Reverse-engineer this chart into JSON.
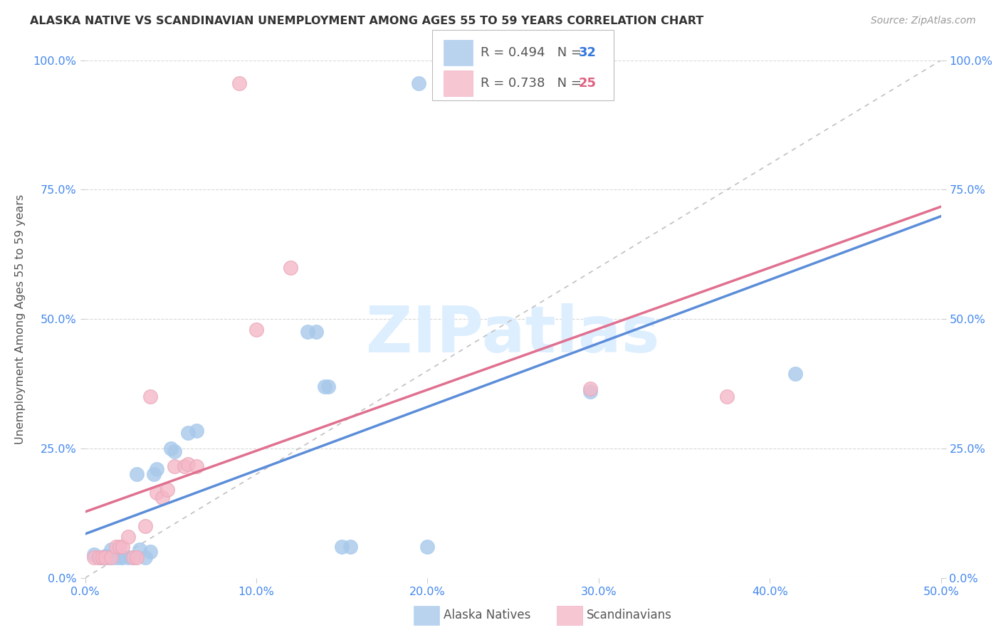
{
  "title": "ALASKA NATIVE VS SCANDINAVIAN UNEMPLOYMENT AMONG AGES 55 TO 59 YEARS CORRELATION CHART",
  "source": "Source: ZipAtlas.com",
  "ylabel": "Unemployment Among Ages 55 to 59 years",
  "xlim": [
    0.0,
    0.5
  ],
  "ylim": [
    0.0,
    1.0
  ],
  "xticks": [
    0.0,
    0.1,
    0.2,
    0.3,
    0.4,
    0.5
  ],
  "yticks": [
    0.0,
    0.25,
    0.5,
    0.75,
    1.0
  ],
  "xticklabels": [
    "0.0%",
    "10.0%",
    "20.0%",
    "30.0%",
    "40.0%",
    "50.0%"
  ],
  "yticklabels": [
    "0.0%",
    "25.0%",
    "50.0%",
    "75.0%",
    "100.0%"
  ],
  "alaska_color": "#a8c8ea",
  "scandinavian_color": "#f5b8c8",
  "alaska_line_color": "#5b8dd9",
  "scandinavian_line_color": "#e07090",
  "R_alaska": 0.494,
  "N_alaska": 32,
  "N_alaska_color": "#3377dd",
  "R_scandinavian": 0.738,
  "N_scandinavian": 25,
  "N_scandinavian_color": "#e06080",
  "alaska_x": [
    0.005,
    0.008,
    0.01,
    0.012,
    0.013,
    0.015,
    0.015,
    0.018,
    0.02,
    0.022,
    0.025,
    0.028,
    0.03,
    0.032,
    0.035,
    0.038,
    0.04,
    0.042,
    0.05,
    0.052,
    0.06,
    0.065,
    0.13,
    0.135,
    0.14,
    0.142,
    0.15,
    0.155,
    0.195,
    0.2,
    0.295,
    0.415
  ],
  "alaska_y": [
    0.045,
    0.04,
    0.04,
    0.042,
    0.04,
    0.04,
    0.055,
    0.04,
    0.04,
    0.04,
    0.04,
    0.04,
    0.2,
    0.055,
    0.04,
    0.05,
    0.2,
    0.21,
    0.25,
    0.245,
    0.28,
    0.285,
    0.475,
    0.475,
    0.37,
    0.37,
    0.06,
    0.06,
    0.955,
    0.06,
    0.36,
    0.395
  ],
  "scandinavian_x": [
    0.005,
    0.008,
    0.01,
    0.012,
    0.015,
    0.018,
    0.02,
    0.022,
    0.025,
    0.028,
    0.03,
    0.035,
    0.038,
    0.042,
    0.045,
    0.048,
    0.052,
    0.058,
    0.06,
    0.065,
    0.09,
    0.1,
    0.12,
    0.295,
    0.375
  ],
  "scandinavian_y": [
    0.04,
    0.04,
    0.04,
    0.04,
    0.04,
    0.06,
    0.06,
    0.06,
    0.08,
    0.04,
    0.04,
    0.1,
    0.35,
    0.165,
    0.155,
    0.17,
    0.215,
    0.215,
    0.22,
    0.215,
    0.955,
    0.48,
    0.6,
    0.365,
    0.35
  ],
  "watermark": "ZIPatlas",
  "background_color": "#ffffff",
  "grid_color": "#d8d8d8"
}
